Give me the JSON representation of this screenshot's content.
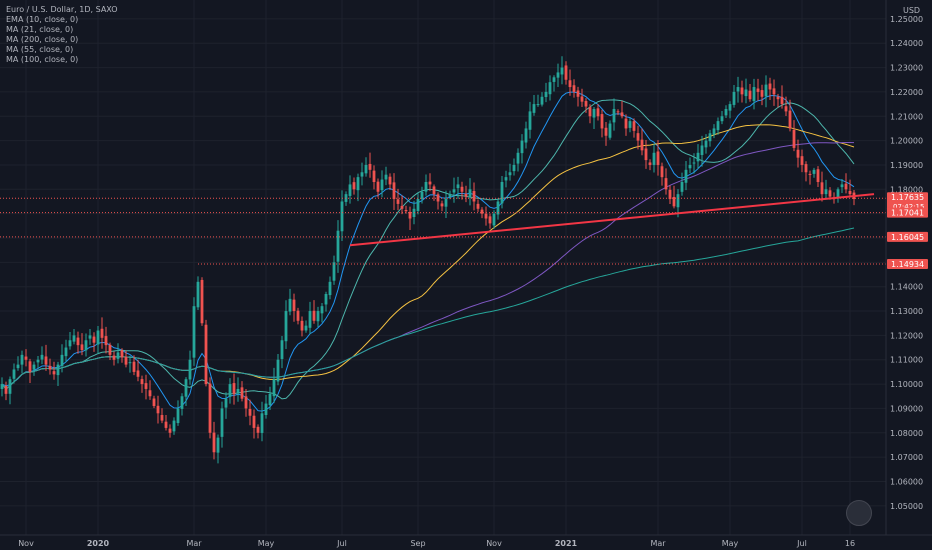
{
  "header": {
    "symbol_line": "Euro / U.S. Dollar, 1D, SAXO"
  },
  "indicators": [
    {
      "label": "EMA (10, close, 0)",
      "color": "#2196f3"
    },
    {
      "label": "MA (21, close, 0)",
      "color": "#4db6ac"
    },
    {
      "label": "MA (200, close, 0)",
      "color": "#26a69a"
    },
    {
      "label": "MA (55, close, 0)",
      "color": "#f5c242"
    },
    {
      "label": "MA (100, close, 0)",
      "color": "#7e57c2"
    }
  ],
  "colors": {
    "up": "#26a69a",
    "down": "#ef5350",
    "trendline": "#f23645",
    "background": "#131722"
  },
  "chart_data": {
    "type": "candlestick",
    "currency_label": "USD",
    "y_ticks": [
      "1.25000",
      "1.24000",
      "1.23000",
      "1.22000",
      "1.21000",
      "1.20000",
      "1.19000",
      "1.18000",
      "1.17000",
      "1.16000",
      "1.15000",
      "1.14000",
      "1.13000",
      "1.12000",
      "1.11000",
      "1.10000",
      "1.09000",
      "1.08000",
      "1.07000",
      "1.06000",
      "1.05000"
    ],
    "ylim": [
      1.045,
      1.252
    ],
    "x_ticks": [
      {
        "label": "Nov",
        "i": 6
      },
      {
        "label": "2020",
        "i": 24
      },
      {
        "label": "Mar",
        "i": 48
      },
      {
        "label": "May",
        "i": 66
      },
      {
        "label": "Jul",
        "i": 85
      },
      {
        "label": "Sep",
        "i": 104
      },
      {
        "label": "Nov",
        "i": 123
      },
      {
        "label": "2021",
        "i": 141
      },
      {
        "label": "Mar",
        "i": 164
      },
      {
        "label": "May",
        "i": 182
      },
      {
        "label": "Jul",
        "i": 200
      },
      {
        "label": "16",
        "i": 212
      }
    ],
    "closes": [
      1.1,
      1.096,
      1.102,
      1.106,
      1.108,
      1.112,
      1.11,
      1.105,
      1.108,
      1.11,
      1.112,
      1.108,
      1.106,
      1.104,
      1.108,
      1.112,
      1.115,
      1.118,
      1.12,
      1.116,
      1.114,
      1.118,
      1.12,
      1.117,
      1.122,
      1.119,
      1.116,
      1.112,
      1.11,
      1.113,
      1.111,
      1.108,
      1.109,
      1.105,
      1.103,
      1.1,
      1.098,
      1.095,
      1.091,
      1.088,
      1.085,
      1.082,
      1.08,
      1.085,
      1.09,
      1.095,
      1.102,
      1.11,
      1.132,
      1.142,
      1.125,
      1.1,
      1.08,
      1.072,
      1.078,
      1.09,
      1.094,
      1.1,
      1.096,
      1.098,
      1.094,
      1.09,
      1.087,
      1.082,
      1.08,
      1.088,
      1.092,
      1.096,
      1.102,
      1.11,
      1.118,
      1.13,
      1.135,
      1.13,
      1.126,
      1.122,
      1.124,
      1.13,
      1.126,
      1.13,
      1.132,
      1.137,
      1.142,
      1.15,
      1.163,
      1.175,
      1.178,
      1.182,
      1.18,
      1.185,
      1.187,
      1.19,
      1.188,
      1.183,
      1.179,
      1.184,
      1.186,
      1.182,
      1.176,
      1.174,
      1.172,
      1.171,
      1.168,
      1.172,
      1.176,
      1.179,
      1.183,
      1.182,
      1.178,
      1.175,
      1.173,
      1.176,
      1.178,
      1.18,
      1.182,
      1.179,
      1.177,
      1.18,
      1.175,
      1.172,
      1.17,
      1.168,
      1.166,
      1.17,
      1.175,
      1.183,
      1.185,
      1.187,
      1.19,
      1.195,
      1.2,
      1.205,
      1.212,
      1.215,
      1.215,
      1.218,
      1.22,
      1.224,
      1.226,
      1.228,
      1.23,
      1.225,
      1.222,
      1.22,
      1.218,
      1.216,
      1.214,
      1.21,
      1.213,
      1.21,
      1.205,
      1.202,
      1.207,
      1.213,
      1.212,
      1.21,
      1.205,
      1.208,
      1.204,
      1.2,
      1.196,
      1.192,
      1.19,
      1.195,
      1.19,
      1.185,
      1.18,
      1.176,
      1.173,
      1.178,
      1.183,
      1.188,
      1.19,
      1.191,
      1.195,
      1.198,
      1.2,
      1.203,
      1.205,
      1.208,
      1.21,
      1.213,
      1.215,
      1.22,
      1.222,
      1.219,
      1.221,
      1.217,
      1.222,
      1.22,
      1.218,
      1.223,
      1.221,
      1.219,
      1.217,
      1.215,
      1.212,
      1.205,
      1.197,
      1.193,
      1.19,
      1.187,
      1.186,
      1.188,
      1.183,
      1.178,
      1.18,
      1.177,
      1.176,
      1.18,
      1.182,
      1.18,
      1.178,
      1.176
    ],
    "trendline": [
      [
        87,
        1.157
      ],
      [
        218,
        1.178
      ]
    ],
    "price_levels": [
      {
        "value": "1.17635",
        "price": 1.17635,
        "current": true,
        "countdown": "07:42:15"
      },
      {
        "value": "1.17041",
        "price": 1.17041
      },
      {
        "value": "1.16045",
        "price": 1.16045
      },
      {
        "value": "1.14934",
        "price": 1.14934,
        "from_i": 49
      }
    ],
    "moving_averages": [
      {
        "name": "EMA (10, close, 0)",
        "period": 10,
        "ema": true,
        "color": "#2196f3"
      },
      {
        "name": "MA (21, close, 0)",
        "period": 21,
        "color": "#4db6ac"
      },
      {
        "name": "MA (55, close, 0)",
        "period": 55,
        "color": "#f5c242"
      },
      {
        "name": "MA (100, close, 0)",
        "period": 100,
        "color": "#7e57c2"
      },
      {
        "name": "MA (200, close, 0)",
        "period": 200,
        "color": "#26a69a"
      }
    ]
  }
}
